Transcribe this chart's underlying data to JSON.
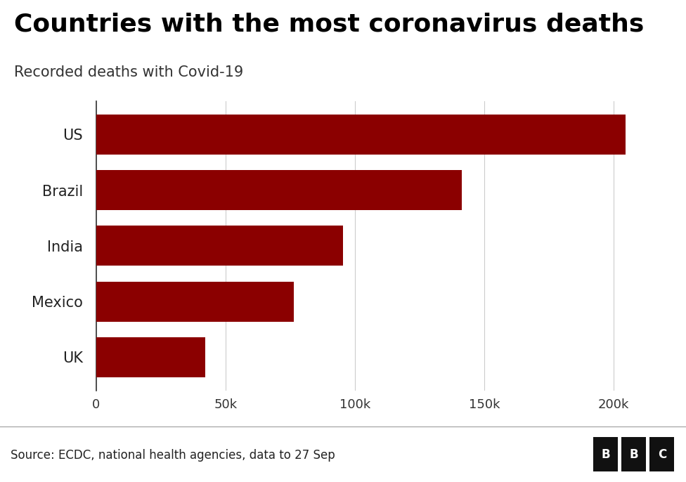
{
  "title": "Countries with the most coronavirus deaths",
  "subtitle": "Recorded deaths with Covid-19",
  "source": "Source: ECDC, national health agencies, data to 27 Sep",
  "categories": [
    "UK",
    "Mexico",
    "India",
    "Brazil",
    "US"
  ],
  "values": [
    42143,
    76430,
    95542,
    141406,
    204691
  ],
  "bar_color": "#8b0000",
  "background_color": "#ffffff",
  "footer_bg_color": "#e0e0e0",
  "xlim": [
    0,
    220000
  ],
  "xticks": [
    0,
    50000,
    100000,
    150000,
    200000
  ],
  "xticklabels": [
    "0",
    "50k",
    "100k",
    "150k",
    "200k"
  ],
  "title_fontsize": 26,
  "subtitle_fontsize": 15,
  "tick_fontsize": 13,
  "label_fontsize": 15,
  "source_fontsize": 12,
  "bbc_letters": [
    "B",
    "B",
    "C"
  ],
  "separator_color": "#999999"
}
